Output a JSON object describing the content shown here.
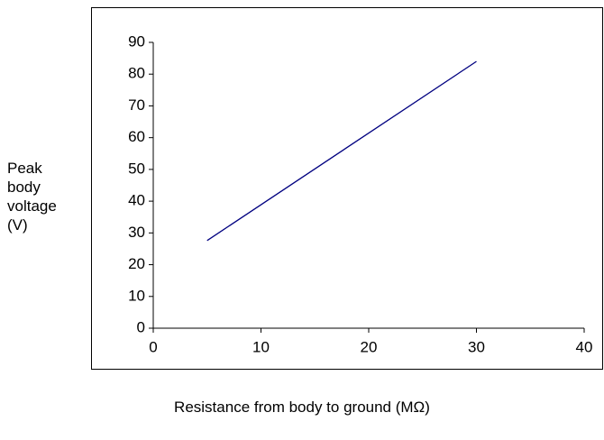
{
  "chart_data": {
    "type": "line",
    "x_label": "Resistance from body to ground (MΩ)",
    "y_label": "Peak body voltage (V)",
    "x": [
      5,
      30
    ],
    "series": [
      {
        "name": "Peak body voltage",
        "color": "#000080",
        "values": [
          27.6,
          84
        ]
      }
    ],
    "xlim": [
      0,
      40
    ],
    "xticks": [
      0,
      10,
      20,
      30,
      40
    ],
    "ylim": [
      0,
      90
    ],
    "yticks": [
      0,
      10,
      20,
      30,
      40,
      50,
      60,
      70,
      80,
      90
    ],
    "grid": false
  }
}
